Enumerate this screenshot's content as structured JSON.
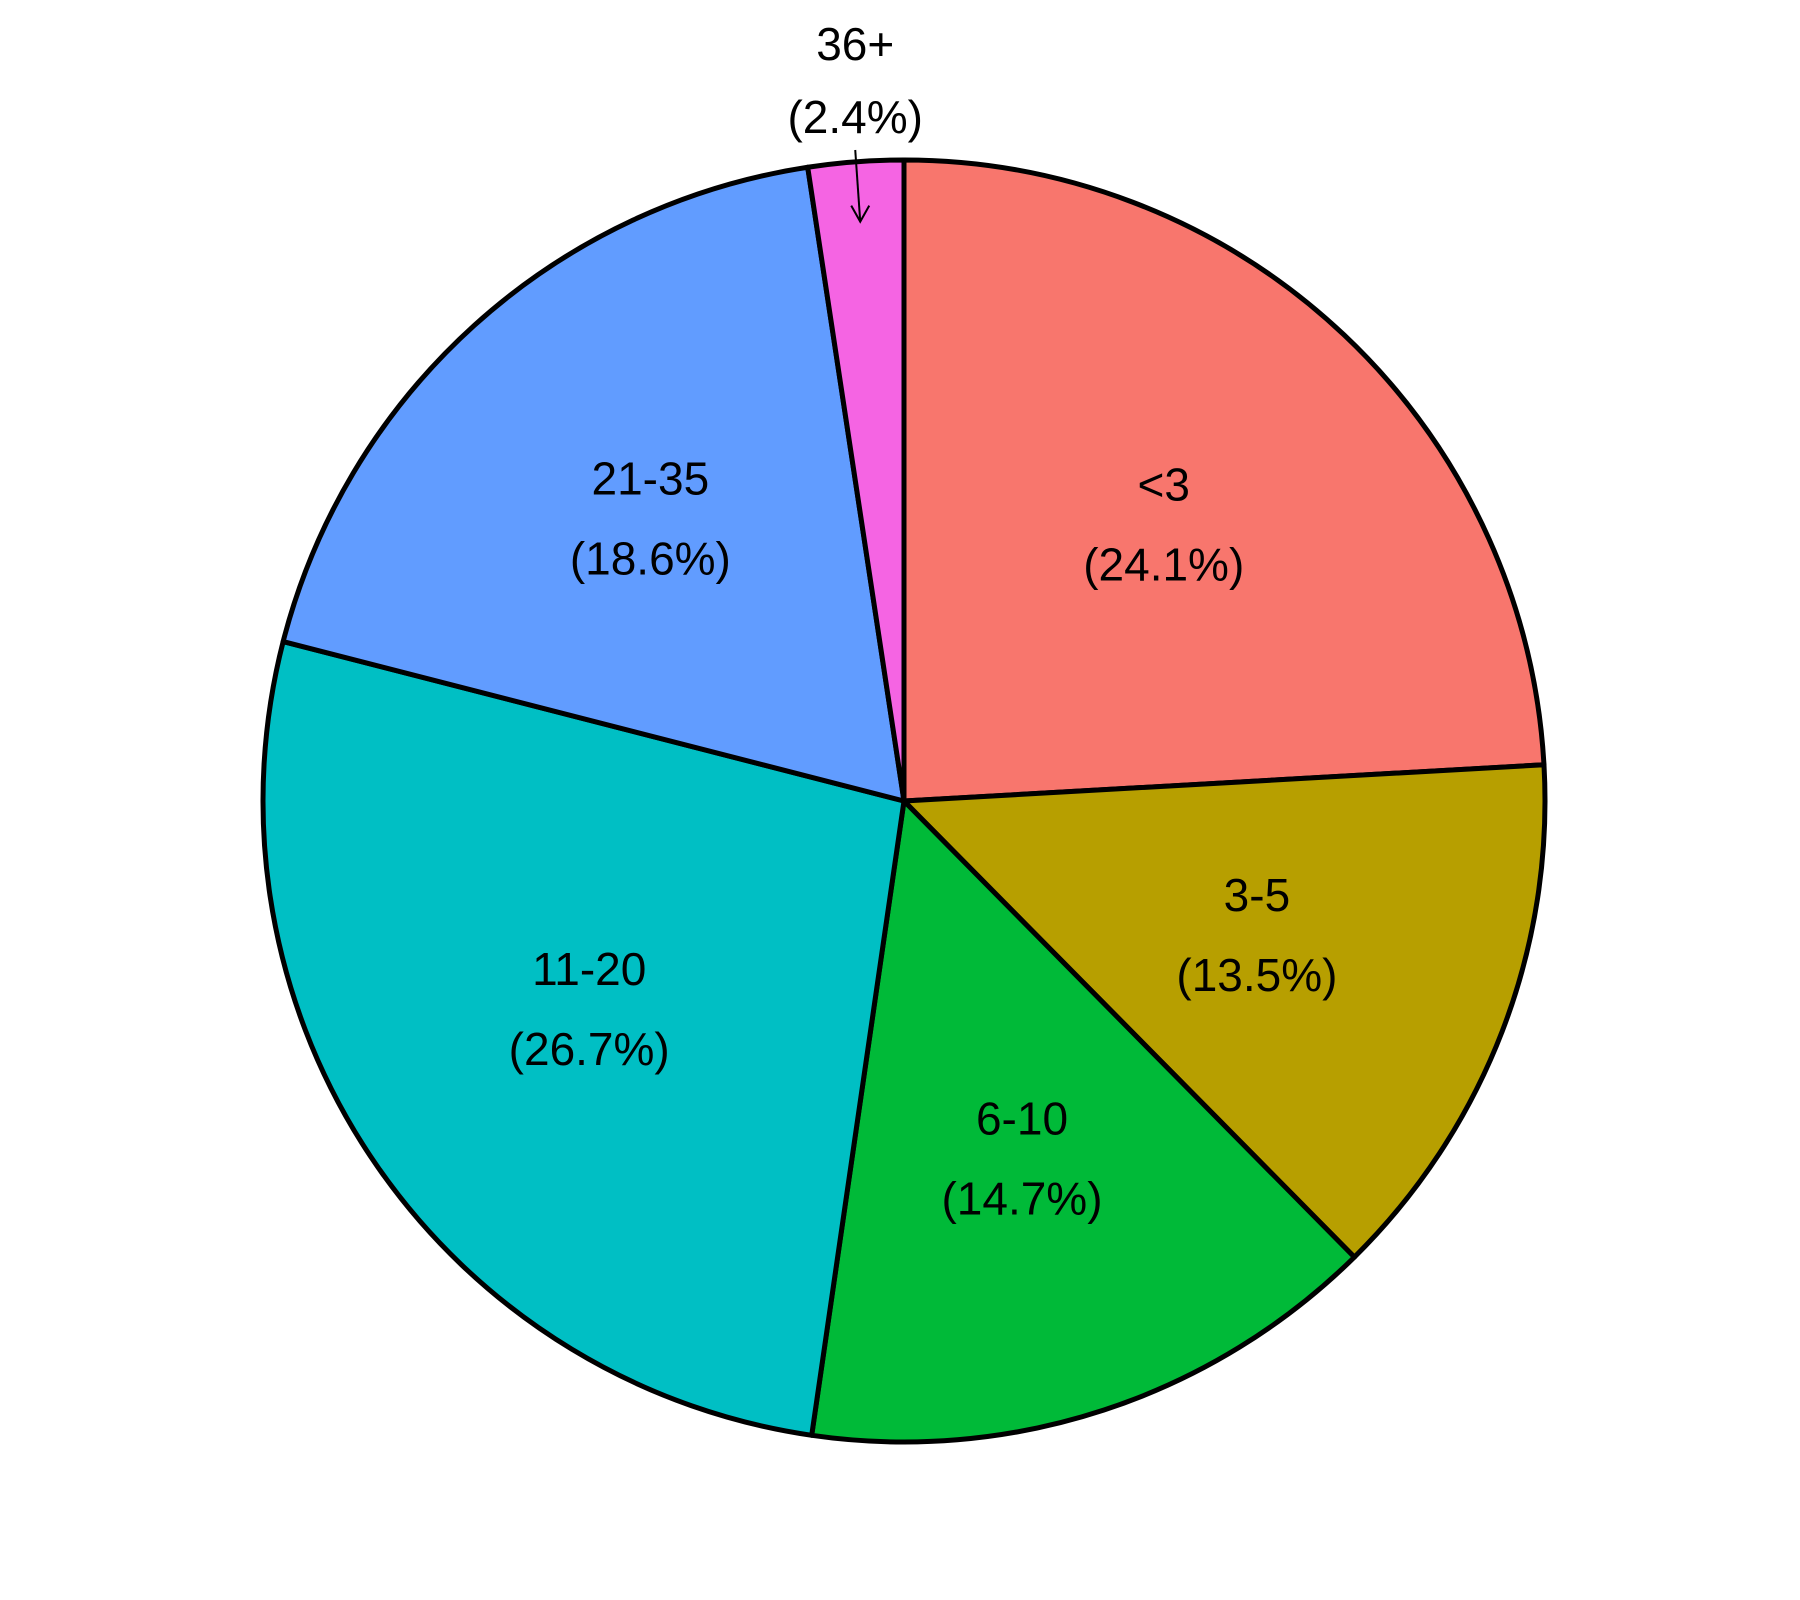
{
  "chart_data": {
    "type": "pie",
    "categories": [
      "<3",
      "3-5",
      "6-10",
      "11-20",
      "21-35",
      "36+"
    ],
    "values": [
      24.1,
      13.5,
      14.7,
      26.7,
      18.6,
      2.4
    ],
    "value_labels": [
      "(24.1%)",
      "(13.5%)",
      "(14.7%)",
      "(26.7%)",
      "(18.6%)",
      "(2.4%)"
    ],
    "colors": [
      "#F8766D",
      "#B79F00",
      "#00BA38",
      "#00BFC4",
      "#619CFF",
      "#F564E3"
    ]
  }
}
